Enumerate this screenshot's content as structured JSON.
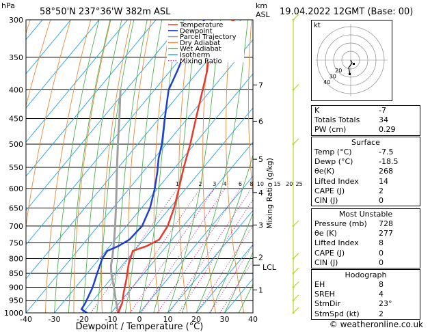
{
  "header": {
    "location": "58°50'N  237°36'W  382m  ASL",
    "datetime": "19.04.2022  12GMT  (Base: 00)"
  },
  "axes": {
    "p_unit": "hPa",
    "alt_unit": "km",
    "alt_unit2": "ASL",
    "x_label": "Dewpoint / Temperature (°C)",
    "mix_label": "Mixing Ratio (g/kg)",
    "lcl_label": "LCL"
  },
  "legend": {
    "temperature": "Temperature",
    "dewpoint": "Dewpoint",
    "parcel": "Parcel Trajectory",
    "dry": "Dry Adiabat",
    "wet": "Wet Adiabat",
    "isotherm": "Isotherm",
    "mixing": "Mixing Ratio"
  },
  "colors": {
    "temperature": "#e8392a",
    "dewpoint": "#1c3fd6",
    "parcel": "#a0a0a0",
    "dry_adiabat": "#e8893a",
    "wet_adiabat": "#4fb04f",
    "isotherm": "#34a9e0",
    "mixing_ratio": "#d03aa8",
    "wind": "#bcd93a"
  },
  "chart_data": {
    "type": "skew-t",
    "pressure_levels": [
      300,
      350,
      400,
      450,
      500,
      550,
      600,
      650,
      700,
      750,
      800,
      850,
      900,
      950,
      1000
    ],
    "temperature_ticks": [
      -40,
      -30,
      -20,
      -10,
      0,
      10,
      20,
      30,
      40
    ],
    "altitude_km_ticks": [
      {
        "km": "7",
        "p": 392
      },
      {
        "km": "6",
        "p": 455
      },
      {
        "km": "5",
        "p": 532
      },
      {
        "km": "4",
        "p": 610
      },
      {
        "km": "3",
        "p": 697
      },
      {
        "km": "2",
        "p": 796
      },
      {
        "km": "1",
        "p": 910
      }
    ],
    "lcl_pressure": 822,
    "mixing_ratio_labels": [
      "1",
      "2",
      "3",
      "4",
      "6",
      "8",
      "10",
      "15",
      "20",
      "25"
    ],
    "mixing_ratio_values": [
      1,
      2,
      3,
      4,
      6,
      8,
      10,
      15,
      20,
      25
    ],
    "temperature_profile": [
      {
        "p": 1000,
        "t": -7.5
      },
      {
        "p": 960,
        "t": -9.0
      },
      {
        "p": 920,
        "t": -11.5
      },
      {
        "p": 870,
        "t": -14.5
      },
      {
        "p": 820,
        "t": -18.0
      },
      {
        "p": 775,
        "t": -20.5
      },
      {
        "p": 760,
        "t": -17.0
      },
      {
        "p": 740,
        "t": -14.5
      },
      {
        "p": 700,
        "t": -15.5
      },
      {
        "p": 650,
        "t": -18.5
      },
      {
        "p": 600,
        "t": -22.5
      },
      {
        "p": 550,
        "t": -27.0
      },
      {
        "p": 500,
        "t": -31.5
      },
      {
        "p": 450,
        "t": -37.0
      },
      {
        "p": 400,
        "t": -43.0
      },
      {
        "p": 370,
        "t": -47.0
      },
      {
        "p": 350,
        "t": -50.5
      },
      {
        "p": 330,
        "t": -52.0
      },
      {
        "p": 300,
        "t": -52.5
      }
    ],
    "dewpoint_profile": [
      {
        "p": 1000,
        "t": -18.5
      },
      {
        "p": 985,
        "t": -21.5
      },
      {
        "p": 960,
        "t": -22.0
      },
      {
        "p": 900,
        "t": -24.0
      },
      {
        "p": 850,
        "t": -26.5
      },
      {
        "p": 800,
        "t": -29.0
      },
      {
        "p": 775,
        "t": -29.5
      },
      {
        "p": 760,
        "t": -27.0
      },
      {
        "p": 740,
        "t": -25.0
      },
      {
        "p": 700,
        "t": -24.5
      },
      {
        "p": 650,
        "t": -27.0
      },
      {
        "p": 600,
        "t": -31.0
      },
      {
        "p": 560,
        "t": -35.0
      },
      {
        "p": 530,
        "t": -38.5
      },
      {
        "p": 500,
        "t": -41.5
      },
      {
        "p": 450,
        "t": -48.0
      },
      {
        "p": 400,
        "t": -55.0
      },
      {
        "p": 370,
        "t": -57.5
      },
      {
        "p": 350,
        "t": -59.5
      },
      {
        "p": 330,
        "t": -60.5
      },
      {
        "p": 300,
        "t": -63.0
      }
    ],
    "parcel_profile": [
      {
        "p": 1000,
        "t": -7.5
      },
      {
        "p": 950,
        "t": -12.0
      },
      {
        "p": 900,
        "t": -16.5
      },
      {
        "p": 850,
        "t": -21.5
      },
      {
        "p": 822,
        "t": -24.0
      },
      {
        "p": 800,
        "t": -25.5
      },
      {
        "p": 750,
        "t": -29.5
      },
      {
        "p": 700,
        "t": -34.0
      },
      {
        "p": 650,
        "t": -39.0
      },
      {
        "p": 600,
        "t": -44.5
      },
      {
        "p": 550,
        "t": -50.5
      },
      {
        "p": 500,
        "t": -57.0
      },
      {
        "p": 450,
        "t": -64.0
      },
      {
        "p": 400,
        "t": -72.0
      }
    ],
    "wind_pressures": [
      300,
      400,
      500,
      700,
      800,
      850,
      900,
      950,
      1000
    ]
  },
  "hodograph": {
    "unit": "kt",
    "ring_labels": [
      "20",
      "30",
      "40"
    ]
  },
  "indices": {
    "k_label": "K",
    "k": "-7",
    "tt_label": "Totals Totals",
    "tt": "34",
    "pw_label": "PW (cm)",
    "pw": "0.29"
  },
  "surface": {
    "title": "Surface",
    "temp_label": "Temp (°C)",
    "temp": "-7.5",
    "dewp_label": "Dewp (°C)",
    "dewp": "-18.5",
    "theta_label": "θe(K)",
    "theta": "268",
    "li_label": "Lifted Index",
    "li": "14",
    "cape_label": "CAPE (J)",
    "cape": "2",
    "cin_label": "CIN (J)",
    "cin": "0"
  },
  "most_unstable": {
    "title": "Most Unstable",
    "pres_label": "Pressure (mb)",
    "pres": "728",
    "theta_label": "θe (K)",
    "theta": "277",
    "li_label": "Lifted Index",
    "li": "8",
    "cape_label": "CAPE (J)",
    "cape": "0",
    "cin_label": "CIN (J)",
    "cin": "0"
  },
  "hodo_table": {
    "title": "Hodograph",
    "eh_label": "EH",
    "eh": "8",
    "sreh_label": "SREH",
    "sreh": "4",
    "stmdir_label": "StmDir",
    "stmdir": "23°",
    "stmspd_label": "StmSpd (kt)",
    "stmspd": "2"
  },
  "footer": "© weatheronline.co.uk"
}
